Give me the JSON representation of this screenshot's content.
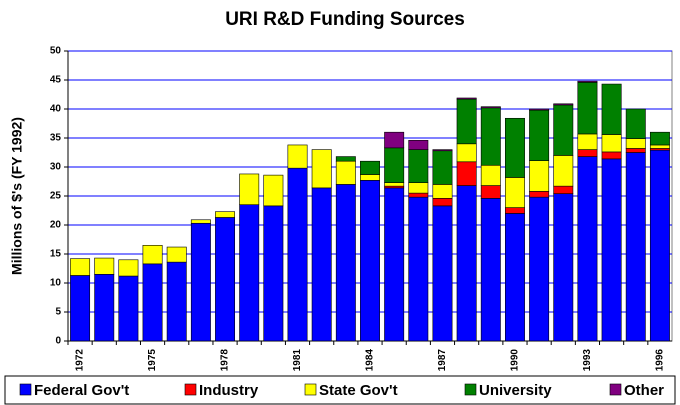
{
  "chart_data": {
    "type": "stacked_bar",
    "title": "URI R&D Funding Sources",
    "y_label": "Millions of $'s (FY 1992)",
    "categories": [
      "1972",
      null,
      null,
      "1975",
      null,
      null,
      "1978",
      null,
      null,
      "1981",
      null,
      null,
      "1984",
      null,
      null,
      "1987",
      null,
      null,
      "1990",
      null,
      null,
      "1993",
      null,
      null,
      "1996"
    ],
    "series": [
      {
        "name": "Federal Gov't",
        "color": "#0000FF",
        "values": [
          11.3,
          11.5,
          11.2,
          13.3,
          13.6,
          20.3,
          21.3,
          23.5,
          23.3,
          29.8,
          26.4,
          27.0,
          27.7,
          26.4,
          24.8,
          23.3,
          26.8,
          24.6,
          22.0,
          24.8,
          25.4,
          31.8,
          31.4,
          32.5,
          32.9
        ]
      },
      {
        "name": "Industry",
        "color": "#FF0000",
        "values": [
          0,
          0,
          0,
          0,
          0,
          0,
          0,
          0,
          0,
          0,
          0,
          0,
          0,
          0.3,
          0.7,
          1.3,
          4.1,
          2.2,
          1.0,
          1.0,
          1.3,
          1.2,
          1.2,
          0.7,
          0.3
        ]
      },
      {
        "name": "State Gov't",
        "color": "#FFFF00",
        "values": [
          2.9,
          2.8,
          2.8,
          3.2,
          2.6,
          0.6,
          1.0,
          5.3,
          5.3,
          4.0,
          6.6,
          4.0,
          1.0,
          0.6,
          1.8,
          2.4,
          3.1,
          3.5,
          5.2,
          5.3,
          5.3,
          2.7,
          3.0,
          1.7,
          0.6
        ]
      },
      {
        "name": "University",
        "color": "#008000",
        "values": [
          0,
          0,
          0,
          0,
          0,
          0,
          0,
          0,
          0,
          0,
          0,
          0.8,
          2.3,
          6.0,
          5.7,
          5.8,
          7.7,
          9.9,
          10.2,
          8.7,
          8.7,
          8.9,
          8.7,
          5.1,
          2.2
        ]
      },
      {
        "name": "Other",
        "color": "#800080",
        "values": [
          0,
          0,
          0,
          0,
          0,
          0,
          0,
          0,
          0,
          0,
          0,
          0,
          0,
          2.7,
          1.6,
          0.2,
          0.2,
          0.2,
          0,
          0.2,
          0.2,
          0.2,
          0,
          0,
          0
        ]
      }
    ],
    "ylim": [
      0,
      50
    ],
    "yticks": [
      0,
      5,
      10,
      15,
      20,
      25,
      30,
      35,
      40,
      45,
      50
    ],
    "grid": true,
    "legend": "bottom"
  }
}
